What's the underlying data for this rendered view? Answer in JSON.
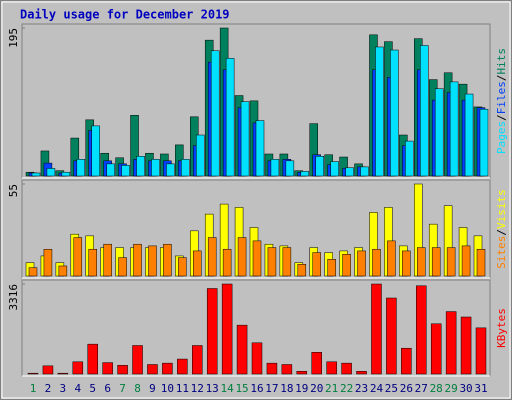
{
  "chart_data": [
    {
      "type": "bar",
      "title": "Daily usage for December 2019",
      "ylim": [
        0,
        195
      ],
      "yticks": [
        195
      ],
      "legend_separator": "/",
      "series": [
        {
          "name": "Hits",
          "color": "#00805c",
          "values": [
            5,
            33,
            7,
            50,
            74,
            30,
            24,
            80,
            30,
            29,
            41,
            78,
            179,
            195,
            106,
            99,
            29,
            29,
            7,
            69,
            28,
            25,
            16,
            186,
            177,
            54,
            181,
            127,
            136,
            121,
            91
          ]
        },
        {
          "name": "Files",
          "color": "#0040ff",
          "values": [
            4,
            17,
            4,
            20,
            60,
            20,
            16,
            22,
            20,
            20,
            20,
            40,
            150,
            140,
            90,
            70,
            20,
            22,
            5,
            28,
            15,
            10,
            12,
            140,
            130,
            40,
            140,
            100,
            110,
            100,
            90
          ]
        },
        {
          "name": "Pages",
          "color": "#00e0ff",
          "values": [
            4,
            10,
            5,
            22,
            66,
            16,
            14,
            26,
            22,
            16,
            22,
            54,
            165,
            155,
            98,
            73,
            22,
            20,
            6,
            26,
            19,
            11,
            12,
            170,
            166,
            46,
            172,
            115,
            124,
            108,
            88
          ]
        }
      ]
    },
    {
      "type": "bar",
      "ylim": [
        0,
        55
      ],
      "yticks": [
        55
      ],
      "legend_separator": "/",
      "series": [
        {
          "name": "Visits",
          "color": "#ffff00",
          "values": [
            8,
            12,
            8,
            25,
            24,
            17,
            17,
            17,
            17,
            17,
            12,
            27,
            37,
            43,
            41,
            29,
            19,
            18,
            8,
            17,
            14,
            15,
            17,
            38,
            41,
            18,
            55,
            31,
            42,
            29,
            24
          ]
        },
        {
          "name": "Sites",
          "color": "#ff8000",
          "values": [
            5,
            16,
            6,
            23,
            16,
            19,
            11,
            19,
            18,
            19,
            11,
            15,
            23,
            16,
            23,
            21,
            17,
            17,
            7,
            14,
            10,
            13,
            15,
            16,
            21,
            15,
            17,
            17,
            17,
            18,
            16
          ]
        }
      ]
    },
    {
      "type": "bar",
      "ylim": [
        0,
        3316
      ],
      "yticks": [
        3316
      ],
      "categories": [
        "1",
        "2",
        "3",
        "4",
        "5",
        "6",
        "7",
        "8",
        "9",
        "10",
        "11",
        "12",
        "13",
        "14",
        "15",
        "16",
        "17",
        "18",
        "19",
        "20",
        "21",
        "22",
        "23",
        "24",
        "25",
        "26",
        "27",
        "28",
        "29",
        "30",
        "31"
      ],
      "category_color": "#000080",
      "highlight_color": "#008040",
      "highlighted": [
        0,
        6,
        7,
        13,
        14,
        20,
        21,
        27,
        28
      ],
      "series": [
        {
          "name": "KBytes",
          "color": "#ff0000",
          "values": [
            30,
            300,
            30,
            450,
            1100,
            420,
            320,
            1050,
            350,
            400,
            550,
            1050,
            3150,
            3316,
            1800,
            1150,
            400,
            350,
            100,
            800,
            450,
            400,
            100,
            3316,
            2800,
            950,
            3250,
            1850,
            2300,
            2100,
            1700
          ]
        }
      ]
    }
  ]
}
